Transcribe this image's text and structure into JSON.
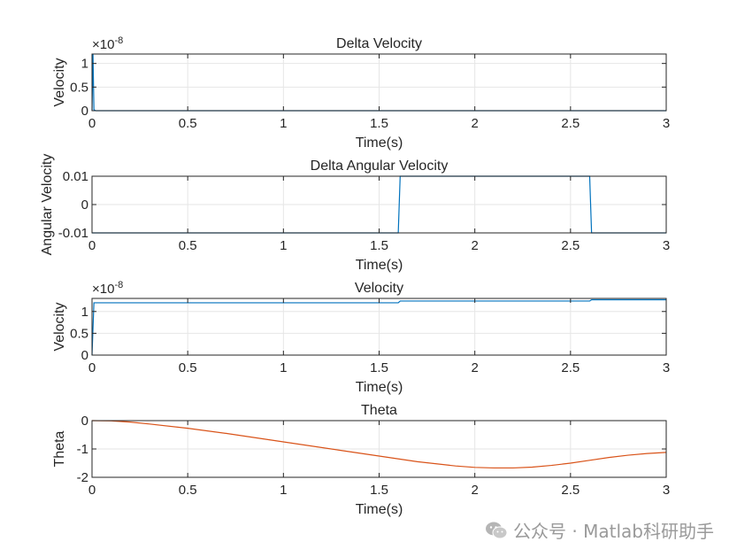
{
  "chart_data": [
    {
      "type": "line",
      "title": "Delta Velocity",
      "xlabel": "Time(s)",
      "ylabel": "Velocity",
      "xlim": [
        0,
        3
      ],
      "ylim": [
        0,
        1.2
      ],
      "xticks": [
        0,
        0.5,
        1,
        1.5,
        2,
        2.5,
        3
      ],
      "xtick_labels": [
        "0",
        "0.5",
        "1",
        "1.5",
        "2",
        "2.5",
        "3"
      ],
      "yticks": [
        0,
        0.5,
        1
      ],
      "ytick_labels": [
        "0",
        "0.5",
        "1"
      ],
      "exponent_label": "×10^-8",
      "exponent_base": "×10",
      "exponent_power": "-8",
      "grid": true,
      "series": [
        {
          "color": "#0072BD",
          "x": [
            0,
            0.005,
            0.01,
            0.02,
            3
          ],
          "y": [
            0,
            1.2,
            0.02,
            0,
            0
          ]
        }
      ]
    },
    {
      "type": "line",
      "title": "Delta Angular Velocity",
      "xlabel": "Time(s)",
      "ylabel": "Angular Velocity",
      "xlim": [
        0,
        3
      ],
      "ylim": [
        -0.01,
        0.01
      ],
      "xticks": [
        0,
        0.5,
        1,
        1.5,
        2,
        2.5,
        3
      ],
      "xtick_labels": [
        "0",
        "0.5",
        "1",
        "1.5",
        "2",
        "2.5",
        "3"
      ],
      "yticks": [
        -0.01,
        0,
        0.01
      ],
      "ytick_labels": [
        "-0.01",
        "0",
        "0.01"
      ],
      "grid": true,
      "series": [
        {
          "color": "#0072BD",
          "x": [
            0,
            1.6,
            1.61,
            2.6,
            2.61,
            3
          ],
          "y": [
            -0.01,
            -0.01,
            0.01,
            0.01,
            -0.01,
            -0.01
          ]
        }
      ]
    },
    {
      "type": "line",
      "title": "Velocity",
      "xlabel": "Time(s)",
      "ylabel": "Velocity",
      "xlim": [
        0,
        3
      ],
      "ylim": [
        0,
        1.3
      ],
      "xticks": [
        0,
        0.5,
        1,
        1.5,
        2,
        2.5,
        3
      ],
      "xtick_labels": [
        "0",
        "0.5",
        "1",
        "1.5",
        "2",
        "2.5",
        "3"
      ],
      "yticks": [
        0,
        0.5,
        1
      ],
      "ytick_labels": [
        "0",
        "0.5",
        "1"
      ],
      "exponent_label": "×10^-8",
      "exponent_base": "×10",
      "exponent_power": "-8",
      "grid": true,
      "series": [
        {
          "color": "#0072BD",
          "x": [
            0,
            0.01,
            0.02,
            1.6,
            1.61,
            2.6,
            2.61,
            3
          ],
          "y": [
            0,
            1.2,
            1.2,
            1.2,
            1.24,
            1.24,
            1.27,
            1.27
          ]
        }
      ]
    },
    {
      "type": "line",
      "title": "Theta",
      "xlabel": "Time(s)",
      "ylabel": "Theta",
      "xlim": [
        0,
        3
      ],
      "ylim": [
        -2,
        0
      ],
      "xticks": [
        0,
        0.5,
        1,
        1.5,
        2,
        2.5,
        3
      ],
      "xtick_labels": [
        "0",
        "0.5",
        "1",
        "1.5",
        "2",
        "2.5",
        "3"
      ],
      "yticks": [
        -2,
        -1,
        0
      ],
      "ytick_labels": [
        "-2",
        "-1",
        "0"
      ],
      "grid": true,
      "series": [
        {
          "color": "#D95319",
          "x": [
            0,
            0.1,
            0.2,
            0.3,
            0.5,
            0.7,
            1.0,
            1.3,
            1.5,
            1.7,
            1.9,
            2.0,
            2.1,
            2.2,
            2.3,
            2.4,
            2.5,
            2.6,
            2.7,
            2.8,
            2.9,
            3.0
          ],
          "y": [
            0,
            -0.01,
            -0.05,
            -0.12,
            -0.27,
            -0.45,
            -0.75,
            -1.05,
            -1.25,
            -1.45,
            -1.6,
            -1.65,
            -1.67,
            -1.67,
            -1.64,
            -1.58,
            -1.5,
            -1.4,
            -1.3,
            -1.22,
            -1.16,
            -1.12
          ]
        }
      ]
    }
  ],
  "watermark": {
    "icon": "wechat-icon",
    "text": "公众号 · Matlab科研助手"
  }
}
